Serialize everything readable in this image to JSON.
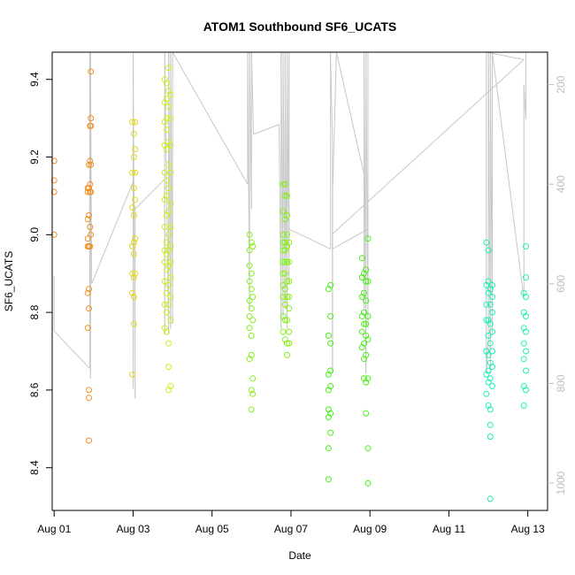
{
  "chart_data": {
    "type": "scatter",
    "title": "ATOM1 Southbound SF6_UCATS",
    "xlabel": "Date",
    "ylabel": "SF6_UCATS",
    "x_ticks": [
      {
        "day": 1,
        "label": "Aug 01"
      },
      {
        "day": 3,
        "label": "Aug 03"
      },
      {
        "day": 5,
        "label": "Aug 05"
      },
      {
        "day": 7,
        "label": "Aug 07"
      },
      {
        "day": 9,
        "label": "Aug 09"
      },
      {
        "day": 11,
        "label": "Aug 11"
      },
      {
        "day": 13,
        "label": "Aug 13"
      }
    ],
    "xlim": [
      0.95,
      13.5
    ],
    "y_ticks": [
      "8.4",
      "8.6",
      "8.8",
      "9.0",
      "9.2",
      "9.4"
    ],
    "ylim": [
      8.29,
      9.47
    ],
    "y2_ticks": [
      "200",
      "400",
      "600",
      "800",
      "1000"
    ],
    "y2lim": [
      1055,
      135
    ],
    "y2_color": "#bdbdbd",
    "altitude_color": "#c8c8c8",
    "legend": "none",
    "grid": false,
    "series": [
      {
        "color": "#f0901e",
        "points": [
          [
            1.0,
            9.19
          ],
          [
            1.0,
            9.14
          ],
          [
            1.0,
            9.11
          ],
          [
            1.0,
            9.0
          ],
          [
            1.85,
            9.12
          ],
          [
            1.85,
            9.11
          ],
          [
            1.85,
            9.04
          ],
          [
            1.85,
            8.99
          ],
          [
            1.85,
            8.97
          ],
          [
            1.85,
            8.85
          ],
          [
            1.85,
            8.76
          ],
          [
            1.88,
            9.18
          ],
          [
            1.88,
            9.12
          ],
          [
            1.88,
            9.05
          ],
          [
            1.88,
            8.97
          ],
          [
            1.88,
            8.86
          ],
          [
            1.88,
            8.81
          ],
          [
            1.88,
            8.6
          ],
          [
            1.88,
            8.58
          ],
          [
            1.88,
            8.47
          ],
          [
            1.91,
            9.28
          ],
          [
            1.91,
            9.19
          ],
          [
            1.91,
            9.13
          ],
          [
            1.91,
            9.11
          ],
          [
            1.91,
            9.02
          ],
          [
            1.91,
            8.97
          ],
          [
            1.93,
            9.42
          ],
          [
            1.93,
            9.3
          ],
          [
            1.93,
            9.28
          ],
          [
            1.93,
            9.18
          ],
          [
            1.93,
            9.11
          ],
          [
            1.93,
            9.0
          ]
        ]
      },
      {
        "color": "#e0d81c",
        "points": [
          [
            2.98,
            9.29
          ],
          [
            2.98,
            9.16
          ],
          [
            2.98,
            9.07
          ],
          [
            2.98,
            8.97
          ],
          [
            2.98,
            8.9
          ],
          [
            2.98,
            8.85
          ],
          [
            2.98,
            8.64
          ],
          [
            3.02,
            9.26
          ],
          [
            3.02,
            9.2
          ],
          [
            3.02,
            9.12
          ],
          [
            3.02,
            9.05
          ],
          [
            3.02,
            8.98
          ],
          [
            3.02,
            8.95
          ],
          [
            3.02,
            8.89
          ],
          [
            3.02,
            8.84
          ],
          [
            3.02,
            8.77
          ],
          [
            3.05,
            9.29
          ],
          [
            3.05,
            9.22
          ],
          [
            3.05,
            9.16
          ],
          [
            3.05,
            9.09
          ],
          [
            3.05,
            8.99
          ],
          [
            3.05,
            8.9
          ]
        ]
      },
      {
        "color": "#ccf01c",
        "points": [
          [
            3.8,
            9.4
          ],
          [
            3.8,
            9.34
          ],
          [
            3.8,
            9.29
          ],
          [
            3.8,
            9.23
          ],
          [
            3.8,
            9.16
          ],
          [
            3.8,
            9.09
          ],
          [
            3.8,
            9.02
          ],
          [
            3.8,
            8.96
          ],
          [
            3.8,
            8.93
          ],
          [
            3.8,
            8.88
          ],
          [
            3.8,
            8.82
          ],
          [
            3.8,
            8.76
          ],
          [
            3.85,
            9.39
          ],
          [
            3.85,
            9.35
          ],
          [
            3.85,
            9.3
          ],
          [
            3.85,
            9.27
          ],
          [
            3.85,
            9.22
          ],
          [
            3.85,
            9.14
          ],
          [
            3.85,
            9.1
          ],
          [
            3.85,
            9.05
          ],
          [
            3.85,
            8.98
          ],
          [
            3.85,
            8.95
          ],
          [
            3.85,
            8.91
          ],
          [
            3.85,
            8.85
          ],
          [
            3.85,
            8.8
          ],
          [
            3.85,
            8.75
          ],
          [
            3.9,
            9.43
          ],
          [
            3.9,
            9.37
          ],
          [
            3.9,
            9.33
          ],
          [
            3.9,
            9.24
          ],
          [
            3.9,
            9.18
          ],
          [
            3.9,
            9.12
          ],
          [
            3.9,
            9.06
          ],
          [
            3.9,
            9.0
          ],
          [
            3.9,
            8.96
          ],
          [
            3.9,
            8.92
          ],
          [
            3.9,
            8.87
          ],
          [
            3.9,
            8.82
          ],
          [
            3.9,
            8.72
          ],
          [
            3.9,
            8.66
          ],
          [
            3.9,
            8.6
          ],
          [
            3.95,
            9.36
          ],
          [
            3.95,
            9.3
          ],
          [
            3.95,
            9.23
          ],
          [
            3.95,
            9.16
          ],
          [
            3.95,
            9.08
          ],
          [
            3.95,
            9.02
          ],
          [
            3.95,
            8.97
          ],
          [
            3.95,
            8.93
          ],
          [
            3.95,
            8.89
          ],
          [
            3.95,
            8.84
          ],
          [
            3.95,
            8.78
          ],
          [
            3.95,
            8.61
          ]
        ]
      },
      {
        "color": "#88f01c",
        "points": [
          [
            5.95,
            9.0
          ],
          [
            5.95,
            8.96
          ],
          [
            5.95,
            8.92
          ],
          [
            5.95,
            8.88
          ],
          [
            5.95,
            8.83
          ],
          [
            5.95,
            8.79
          ],
          [
            5.95,
            8.76
          ],
          [
            5.95,
            8.68
          ],
          [
            6.0,
            8.98
          ],
          [
            6.0,
            8.9
          ],
          [
            6.0,
            8.86
          ],
          [
            6.0,
            8.81
          ],
          [
            6.0,
            8.74
          ],
          [
            6.0,
            8.69
          ],
          [
            6.0,
            8.6
          ],
          [
            6.0,
            8.55
          ],
          [
            6.03,
            8.97
          ],
          [
            6.03,
            8.84
          ],
          [
            6.03,
            8.78
          ],
          [
            6.03,
            8.63
          ],
          [
            6.03,
            8.59
          ],
          [
            6.8,
            9.13
          ],
          [
            6.8,
            9.06
          ],
          [
            6.8,
            9.0
          ],
          [
            6.8,
            8.98
          ],
          [
            6.8,
            8.96
          ],
          [
            6.8,
            8.93
          ],
          [
            6.8,
            8.9
          ],
          [
            6.8,
            8.87
          ],
          [
            6.8,
            8.84
          ],
          [
            6.8,
            8.79
          ],
          [
            6.8,
            8.75
          ],
          [
            6.85,
            9.13
          ],
          [
            6.85,
            9.1
          ],
          [
            6.85,
            9.04
          ],
          [
            6.85,
            8.98
          ],
          [
            6.85,
            8.96
          ],
          [
            6.85,
            8.93
          ],
          [
            6.85,
            8.9
          ],
          [
            6.85,
            8.86
          ],
          [
            6.85,
            8.82
          ],
          [
            6.85,
            8.78
          ],
          [
            6.85,
            8.73
          ],
          [
            6.9,
            9.1
          ],
          [
            6.9,
            9.05
          ],
          [
            6.9,
            9.0
          ],
          [
            6.9,
            8.97
          ],
          [
            6.9,
            8.93
          ],
          [
            6.9,
            8.88
          ],
          [
            6.9,
            8.84
          ],
          [
            6.9,
            8.78
          ],
          [
            6.9,
            8.72
          ],
          [
            6.9,
            8.69
          ],
          [
            6.95,
            8.98
          ],
          [
            6.95,
            8.93
          ],
          [
            6.95,
            8.88
          ],
          [
            6.95,
            8.84
          ],
          [
            6.95,
            8.81
          ],
          [
            6.95,
            8.75
          ],
          [
            6.95,
            8.72
          ]
        ]
      },
      {
        "color": "#48f018",
        "points": [
          [
            7.95,
            8.86
          ],
          [
            7.95,
            8.74
          ],
          [
            7.95,
            8.64
          ],
          [
            7.95,
            8.6
          ],
          [
            7.95,
            8.55
          ],
          [
            7.95,
            8.53
          ],
          [
            7.95,
            8.45
          ],
          [
            7.95,
            8.37
          ],
          [
            8.0,
            8.87
          ],
          [
            8.0,
            8.79
          ],
          [
            8.0,
            8.72
          ],
          [
            8.0,
            8.65
          ],
          [
            8.0,
            8.61
          ],
          [
            8.0,
            8.54
          ],
          [
            8.0,
            8.49
          ],
          [
            8.8,
            8.94
          ],
          [
            8.8,
            8.89
          ],
          [
            8.8,
            8.84
          ],
          [
            8.8,
            8.79
          ],
          [
            8.8,
            8.75
          ],
          [
            8.8,
            8.71
          ],
          [
            8.85,
            8.9
          ],
          [
            8.85,
            8.85
          ],
          [
            8.85,
            8.8
          ],
          [
            8.85,
            8.77
          ],
          [
            8.85,
            8.72
          ],
          [
            8.85,
            8.68
          ],
          [
            8.85,
            8.63
          ],
          [
            8.9,
            8.91
          ],
          [
            8.9,
            8.88
          ],
          [
            8.9,
            8.83
          ],
          [
            8.9,
            8.77
          ],
          [
            8.9,
            8.74
          ],
          [
            8.9,
            8.69
          ],
          [
            8.9,
            8.62
          ],
          [
            8.9,
            8.54
          ],
          [
            8.95,
            8.99
          ],
          [
            8.95,
            8.88
          ],
          [
            8.95,
            8.79
          ],
          [
            8.95,
            8.73
          ],
          [
            8.95,
            8.63
          ],
          [
            8.95,
            8.45
          ],
          [
            8.95,
            8.36
          ]
        ]
      },
      {
        "color": "#1ef0b8",
        "points": [
          [
            11.95,
            8.98
          ],
          [
            11.95,
            8.87
          ],
          [
            11.95,
            8.82
          ],
          [
            11.95,
            8.78
          ],
          [
            11.95,
            8.7
          ],
          [
            11.95,
            8.64
          ],
          [
            11.95,
            8.59
          ],
          [
            12.0,
            8.96
          ],
          [
            12.0,
            8.88
          ],
          [
            12.0,
            8.85
          ],
          [
            12.0,
            8.78
          ],
          [
            12.0,
            8.74
          ],
          [
            12.0,
            8.69
          ],
          [
            12.0,
            8.65
          ],
          [
            12.0,
            8.62
          ],
          [
            12.0,
            8.56
          ],
          [
            12.05,
            8.86
          ],
          [
            12.05,
            8.82
          ],
          [
            12.05,
            8.77
          ],
          [
            12.05,
            8.72
          ],
          [
            12.05,
            8.67
          ],
          [
            12.05,
            8.63
          ],
          [
            12.05,
            8.55
          ],
          [
            12.05,
            8.51
          ],
          [
            12.05,
            8.48
          ],
          [
            12.05,
            8.32
          ],
          [
            12.1,
            8.87
          ],
          [
            12.1,
            8.84
          ],
          [
            12.1,
            8.8
          ],
          [
            12.1,
            8.75
          ],
          [
            12.1,
            8.7
          ],
          [
            12.1,
            8.66
          ],
          [
            12.1,
            8.61
          ],
          [
            12.9,
            8.85
          ],
          [
            12.9,
            8.8
          ],
          [
            12.9,
            8.76
          ],
          [
            12.9,
            8.72
          ],
          [
            12.9,
            8.68
          ],
          [
            12.9,
            8.61
          ],
          [
            12.9,
            8.56
          ],
          [
            12.95,
            8.97
          ],
          [
            12.95,
            8.89
          ],
          [
            12.95,
            8.84
          ],
          [
            12.95,
            8.79
          ],
          [
            12.95,
            8.75
          ],
          [
            12.95,
            8.7
          ],
          [
            12.95,
            8.65
          ],
          [
            12.95,
            8.6
          ]
        ]
      }
    ],
    "altitude_profile": [
      [
        1.0,
        585
      ],
      [
        1.0,
        695
      ],
      [
        1.9,
        770
      ],
      [
        1.9,
        135
      ],
      [
        1.92,
        790
      ],
      [
        1.92,
        135
      ],
      [
        1.95,
        600
      ],
      [
        3.0,
        395
      ],
      [
        3.0,
        810
      ],
      [
        3.0,
        135
      ],
      [
        3.05,
        830
      ],
      [
        3.05,
        450
      ],
      [
        3.8,
        390
      ],
      [
        3.8,
        700
      ],
      [
        3.8,
        135
      ],
      [
        3.9,
        700
      ],
      [
        3.9,
        135
      ],
      [
        3.95,
        690
      ],
      [
        3.95,
        135
      ],
      [
        4.0,
        680
      ],
      [
        4.0,
        135
      ],
      [
        5.9,
        400
      ],
      [
        5.9,
        135
      ],
      [
        5.95,
        650
      ],
      [
        5.95,
        135
      ],
      [
        6.0,
        450
      ],
      [
        6.0,
        135
      ],
      [
        6.05,
        300
      ],
      [
        6.7,
        280
      ],
      [
        6.75,
        690
      ],
      [
        6.75,
        135
      ],
      [
        6.8,
        670
      ],
      [
        6.8,
        135
      ],
      [
        6.85,
        650
      ],
      [
        6.85,
        135
      ],
      [
        6.9,
        690
      ],
      [
        6.9,
        135
      ],
      [
        6.95,
        600
      ],
      [
        6.95,
        135
      ],
      [
        6.95,
        490
      ],
      [
        8.0,
        530
      ],
      [
        8.0,
        135
      ],
      [
        8.05,
        320
      ],
      [
        8.05,
        780
      ],
      [
        8.05,
        430
      ],
      [
        8.15,
        130
      ],
      [
        8.85,
        380
      ],
      [
        8.85,
        650
      ],
      [
        8.85,
        135
      ],
      [
        8.9,
        780
      ],
      [
        8.9,
        135
      ],
      [
        8.95,
        690
      ],
      [
        8.95,
        135
      ],
      [
        8.95,
        490
      ],
      [
        8.05,
        530
      ],
      [
        8.05,
        500
      ],
      [
        12.9,
        150
      ],
      [
        11.95,
        135
      ],
      [
        11.95,
        780
      ],
      [
        12.0,
        710
      ],
      [
        12.0,
        135
      ],
      [
        12.05,
        780
      ],
      [
        12.05,
        135
      ],
      [
        12.1,
        700
      ],
      [
        12.1,
        135
      ],
      [
        12.9,
        630
      ],
      [
        12.9,
        200
      ],
      [
        12.95,
        270
      ],
      [
        12.95,
        135
      ]
    ]
  }
}
